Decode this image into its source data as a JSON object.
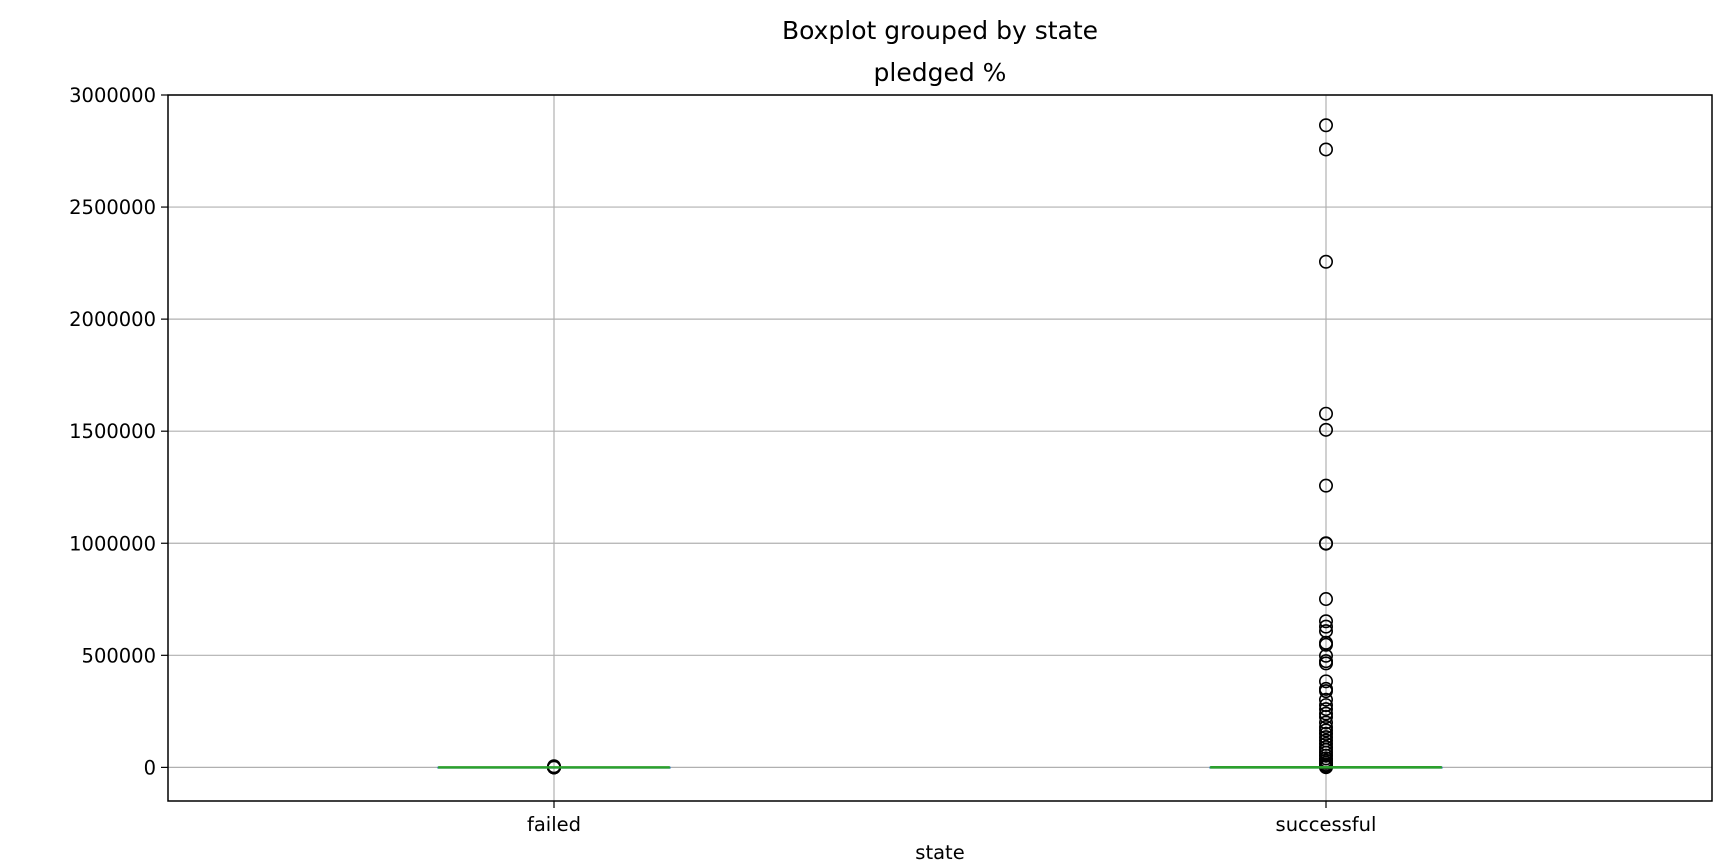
{
  "chart_data": {
    "type": "box",
    "suptitle": "Boxplot grouped by state",
    "title": "pledged %",
    "xlabel": "state",
    "ylabel": "",
    "categories": [
      "failed",
      "successful"
    ],
    "ylim": [
      -150000,
      3000000
    ],
    "yticks": [
      0,
      500000,
      1000000,
      1500000,
      2000000,
      2500000,
      3000000
    ],
    "ytick_labels": [
      "0",
      "500000",
      "1000000",
      "1500000",
      "2000000",
      "2500000",
      "3000000"
    ],
    "grid": true,
    "colors": {
      "median": "#2ca02c",
      "box": "#1f77b4",
      "grid": "#b0b0b0",
      "outlier_edge": "#000000"
    },
    "boxes": [
      {
        "name": "failed",
        "q1": 0,
        "median": 1,
        "q3": 8,
        "whisker_low": 0,
        "whisker_high": 20,
        "outliers": [
          25,
          40,
          60,
          90,
          150,
          300,
          600,
          1200,
          2500,
          5000
        ]
      },
      {
        "name": "successful",
        "q1": 110,
        "median": 130,
        "q3": 200,
        "whisker_low": 100,
        "whisker_high": 330,
        "outliers": [
          2865000,
          2757000,
          2256000,
          1578000,
          1506000,
          1257000,
          1000000,
          998000,
          751000,
          652000,
          628000,
          608000,
          556000,
          547000,
          498000,
          474000,
          464000,
          384000,
          350000,
          340000,
          302000,
          278000,
          260000,
          240000,
          225000,
          200000,
          180000,
          165000,
          150000,
          135000,
          120000,
          105000,
          90000,
          78000,
          65000,
          52000,
          40000,
          30000,
          20000,
          12000,
          6000,
          3000,
          1500,
          800
        ]
      }
    ]
  }
}
